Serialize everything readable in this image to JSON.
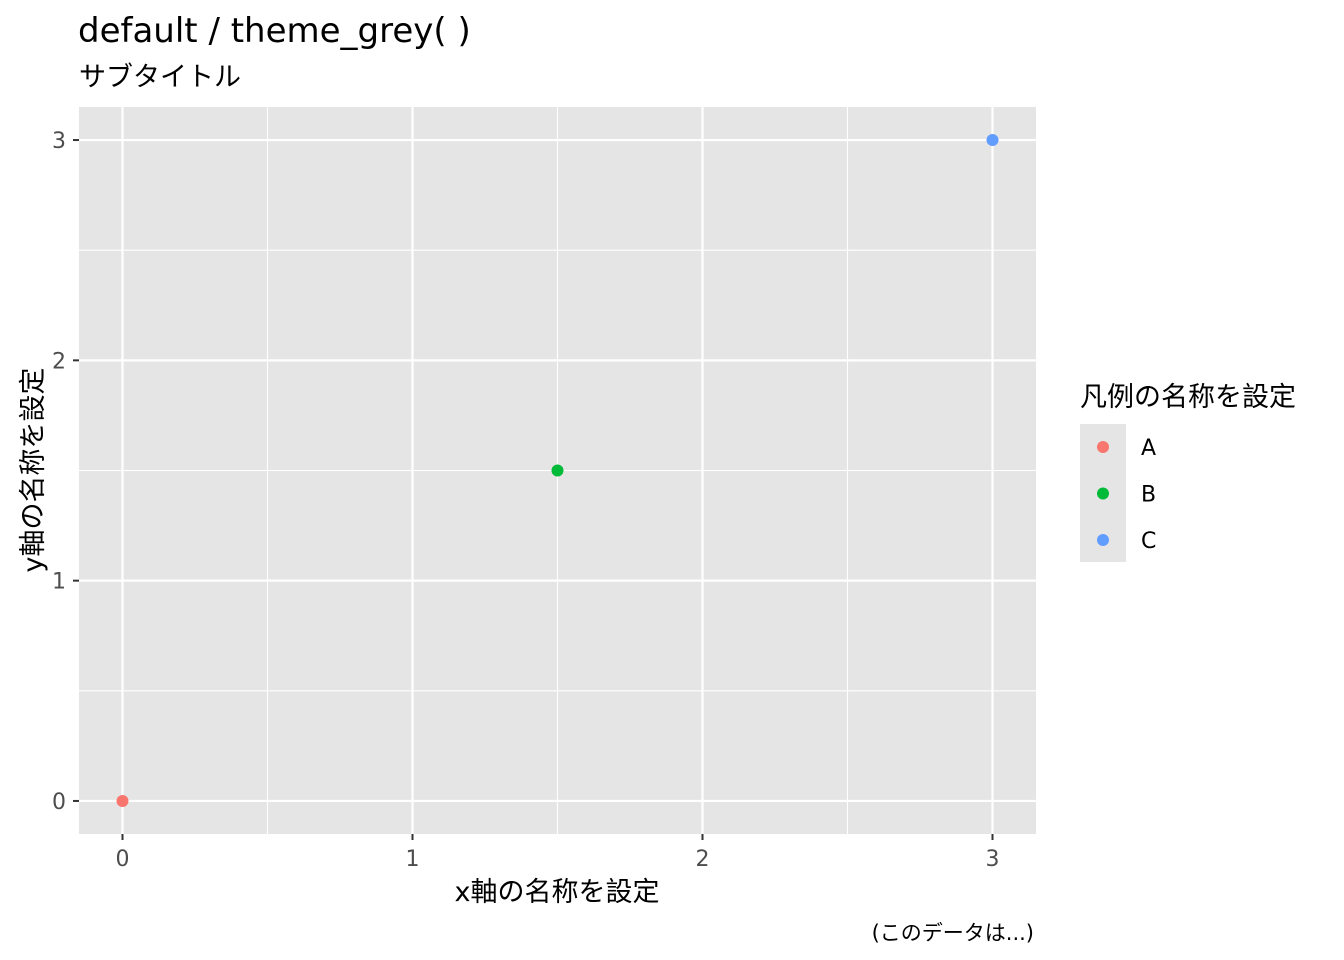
{
  "chart_data": {
    "type": "scatter",
    "title": "default / theme_grey( )",
    "subtitle": "サブタイトル",
    "xlabel": "x軸の名称を設定",
    "ylabel": "y軸の名称を設定",
    "caption": "(このデータは...)",
    "xlim": [
      -0.15,
      3.15
    ],
    "ylim": [
      -0.15,
      3.15
    ],
    "x_ticks": [
      0,
      1,
      2,
      3
    ],
    "y_ticks": [
      0,
      1,
      2,
      3
    ],
    "x_tick_labels": [
      "0",
      "1",
      "2",
      "3"
    ],
    "y_tick_labels": [
      "0",
      "1",
      "2",
      "3"
    ],
    "grid": true,
    "panel_background": "#E5E5E5",
    "grid_color": "#FFFFFF",
    "legend": {
      "title": "凡例の名称を設定",
      "position": "right",
      "background": "#E5E5E5"
    },
    "series": [
      {
        "name": "A",
        "color": "#F8766D",
        "points": [
          {
            "x": 0,
            "y": 0
          }
        ]
      },
      {
        "name": "B",
        "color": "#00BA38",
        "points": [
          {
            "x": 1.5,
            "y": 1.5
          }
        ]
      },
      {
        "name": "C",
        "color": "#619CFF",
        "points": [
          {
            "x": 3,
            "y": 3
          }
        ]
      }
    ]
  }
}
